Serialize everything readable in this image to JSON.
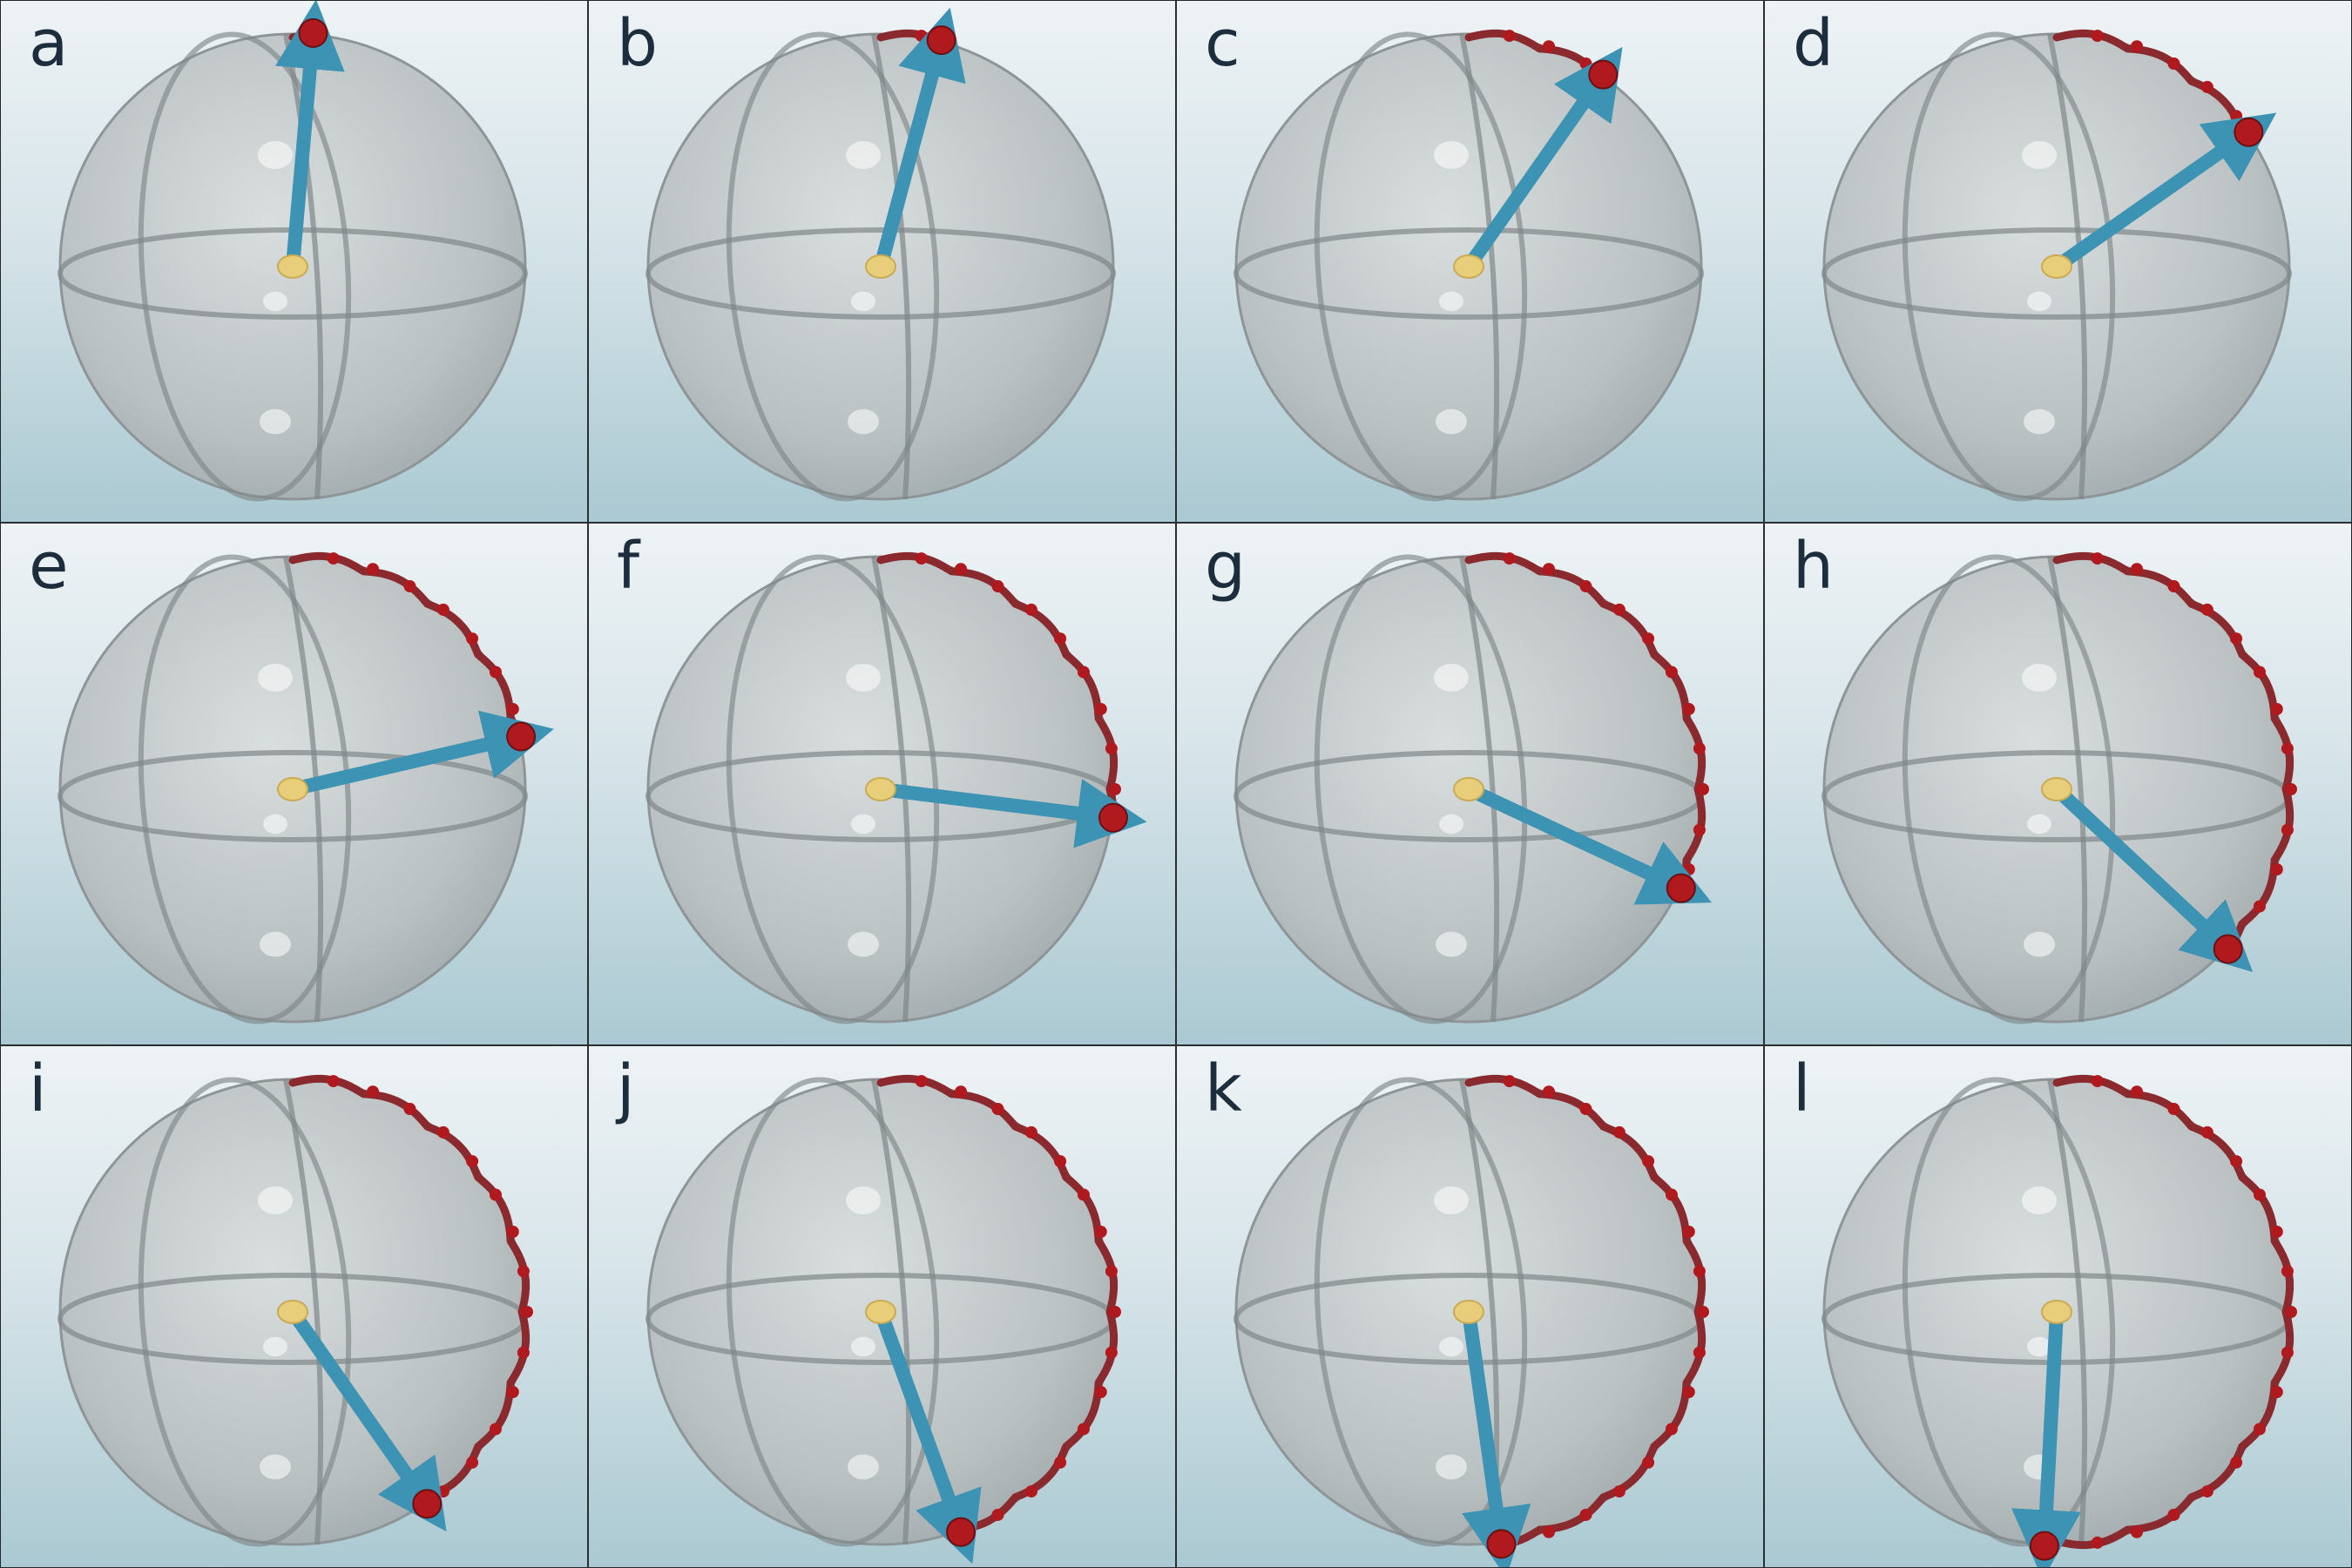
{
  "figure": {
    "panels": [
      {
        "label": "a",
        "theta_deg": 5
      },
      {
        "label": "b",
        "theta_deg": 15
      },
      {
        "label": "c",
        "theta_deg": 35
      },
      {
        "label": "d",
        "theta_deg": 55
      },
      {
        "label": "e",
        "theta_deg": 77
      },
      {
        "label": "f",
        "theta_deg": 97
      },
      {
        "label": "g",
        "theta_deg": 115
      },
      {
        "label": "h",
        "theta_deg": 133
      },
      {
        "label": "i",
        "theta_deg": 145
      },
      {
        "label": "j",
        "theta_deg": 160
      },
      {
        "label": "k",
        "theta_deg": 172
      },
      {
        "label": "l",
        "theta_deg": 183
      }
    ],
    "colors": {
      "sphere": "#b9bfc0",
      "grid_lines": "#7f8789",
      "arrow": "#3d93b3",
      "trail": "#8a2a2e",
      "tip": "#b0191e",
      "origin": "#e8cd7a",
      "label": "#1c2e3d"
    }
  }
}
